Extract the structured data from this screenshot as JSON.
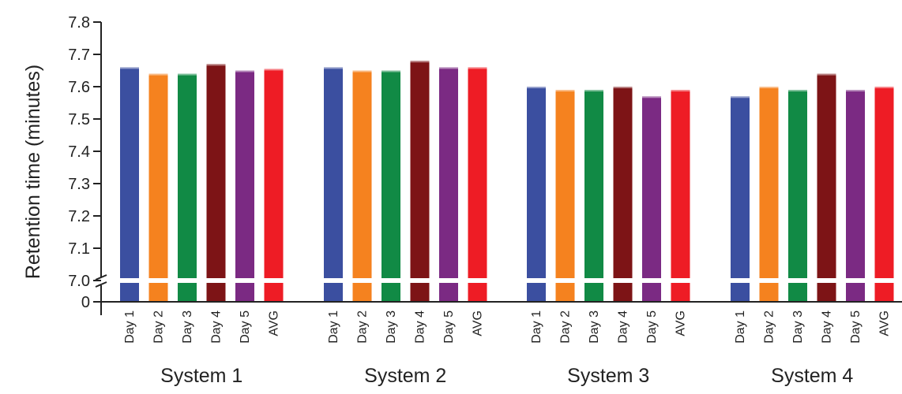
{
  "chart_data": {
    "type": "bar",
    "ylabel": "Retention time (minutes)",
    "y_ticks": [
      "7.8",
      "7.7",
      "7.6",
      "7.5",
      "7.4",
      "7.3",
      "7.2",
      "7.1",
      "7.0",
      "0"
    ],
    "ylim": [
      7.0,
      7.8
    ],
    "axis_break": true,
    "categories": [
      "Day 1",
      "Day 2",
      "Day 3",
      "Day 4",
      "Day 5",
      "AVG"
    ],
    "colors": [
      "#3b4fa0",
      "#f5821f",
      "#118a45",
      "#7d1416",
      "#7b2a83",
      "#ee1c25"
    ],
    "groups": [
      {
        "name": "System 1",
        "values": [
          7.66,
          7.64,
          7.64,
          7.67,
          7.65,
          7.655
        ]
      },
      {
        "name": "System 2",
        "values": [
          7.66,
          7.65,
          7.65,
          7.68,
          7.66,
          7.66
        ]
      },
      {
        "name": "System 3",
        "values": [
          7.6,
          7.59,
          7.59,
          7.6,
          7.57,
          7.59
        ]
      },
      {
        "name": "System 4",
        "values": [
          7.57,
          7.6,
          7.59,
          7.64,
          7.59,
          7.6
        ]
      }
    ]
  }
}
